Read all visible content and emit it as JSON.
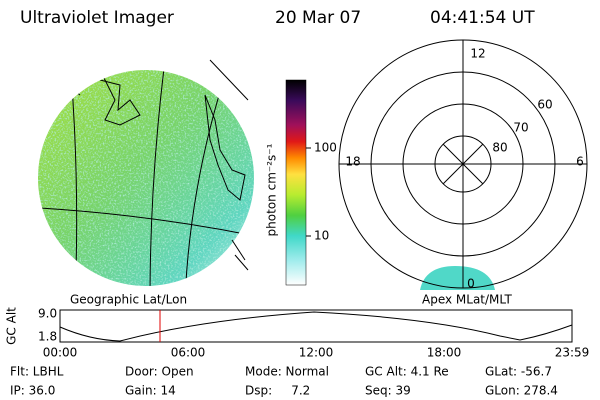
{
  "header": {
    "instrument": "Ultraviolet Imager",
    "date": "20 Mar 07",
    "time": "04:41:54 UT"
  },
  "colorbar": {
    "label": "photon cm⁻²s⁻¹",
    "ticks": [
      "100",
      "10"
    ]
  },
  "polar": {
    "labels": {
      "top": "12",
      "left": "18",
      "right": "6",
      "bottom": "0"
    },
    "rings": [
      "60",
      "70",
      "80"
    ]
  },
  "panels": {
    "left": "Geographic Lat/Lon",
    "right": "Apex MLat/MLT"
  },
  "timeline": {
    "label": "GC Alt",
    "yticks": [
      "9.0",
      "1.8"
    ],
    "xticks": [
      "00:00",
      "06:00",
      "12:00",
      "18:00",
      "23:59"
    ]
  },
  "status": [
    [
      "Flt: LBHL",
      "Door: Open",
      "Mode: Normal",
      "GC Alt: 4.1 Re",
      "GLat: -56.7"
    ],
    [
      "IP: 36.0",
      "Gain: 14",
      "Dsp:     7.2",
      "Seq: 39",
      "GLon: 278.4"
    ]
  ]
}
